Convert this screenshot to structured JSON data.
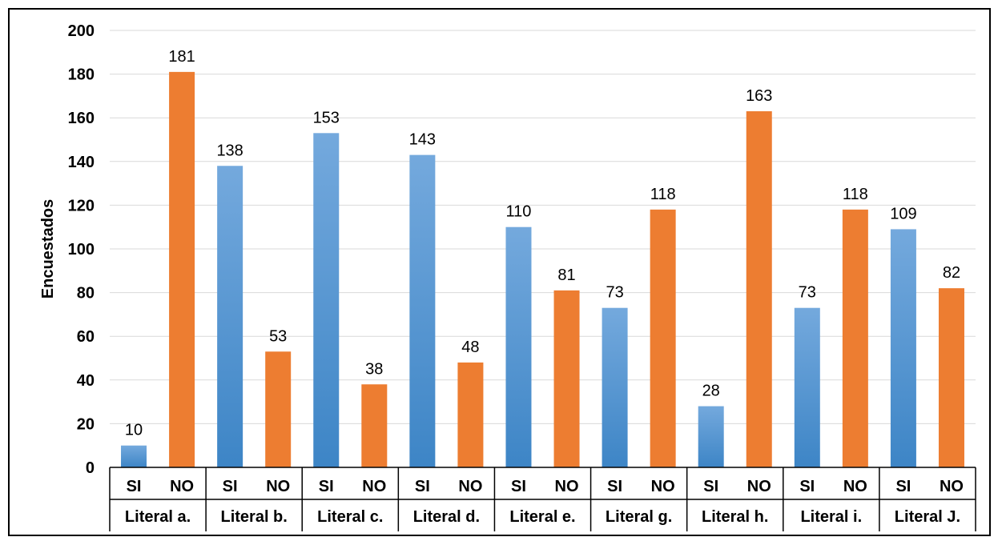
{
  "chart_data": {
    "type": "bar",
    "title": "",
    "ylabel": "Encuestados",
    "ylim": [
      0,
      200
    ],
    "ytick_step": 20,
    "grid": true,
    "groups": [
      "Literal a.",
      "Literal b.",
      "Literal c.",
      "Literal d.",
      "Literal e.",
      "Literal g.",
      "Literal h.",
      "Literal i.",
      "Literal J."
    ],
    "subcategories": [
      "SI",
      "NO"
    ],
    "series": [
      {
        "name": "SI",
        "color": "#5b9bd5",
        "values": [
          10,
          138,
          153,
          143,
          110,
          73,
          28,
          73,
          109
        ]
      },
      {
        "name": "NO",
        "color": "#ed7d31",
        "values": [
          181,
          53,
          38,
          48,
          81,
          118,
          163,
          118,
          82
        ]
      }
    ]
  }
}
